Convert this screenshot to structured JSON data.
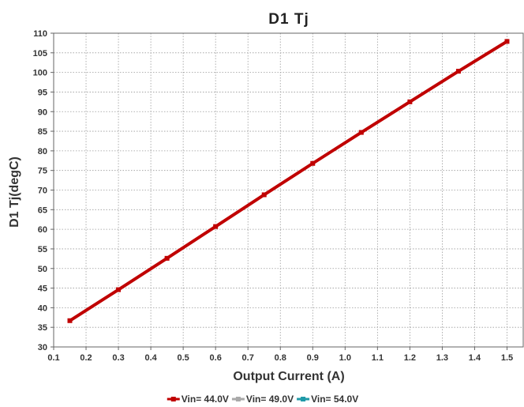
{
  "chart_data": {
    "type": "line",
    "title": "D1  Tj",
    "xlabel": "Output Current (A)",
    "ylabel": "D1 Tj(degC)",
    "xlim": [
      0.1,
      1.55
    ],
    "ylim": [
      30,
      110
    ],
    "x_ticks": [
      "0.1",
      "0.2",
      "0.3",
      "0.4",
      "0.5",
      "0.6",
      "0.7",
      "0.8",
      "0.9",
      "1.0",
      "1.1",
      "1.2",
      "1.3",
      "1.4",
      "1.5"
    ],
    "y_ticks": [
      "30",
      "35",
      "40",
      "45",
      "50",
      "55",
      "60",
      "65",
      "70",
      "75",
      "80",
      "85",
      "90",
      "95",
      "100",
      "105",
      "110"
    ],
    "grid": true,
    "legend_position": "bottom",
    "series": [
      {
        "name": "Vin= 44.0V",
        "color": "#c00000",
        "x": [
          0.15,
          0.3,
          0.45,
          0.6,
          0.75,
          0.9,
          1.05,
          1.2,
          1.35,
          1.5
        ],
        "y": [
          36.7,
          44.6,
          52.6,
          60.7,
          68.8,
          76.8,
          84.7,
          92.5,
          100.3,
          107.9
        ]
      },
      {
        "name": "Vin= 49.0V",
        "color": "#a9a9a9",
        "x": [],
        "y": []
      },
      {
        "name": "Vin= 54.0V",
        "color": "#1f9aa8",
        "x": [],
        "y": []
      }
    ]
  }
}
